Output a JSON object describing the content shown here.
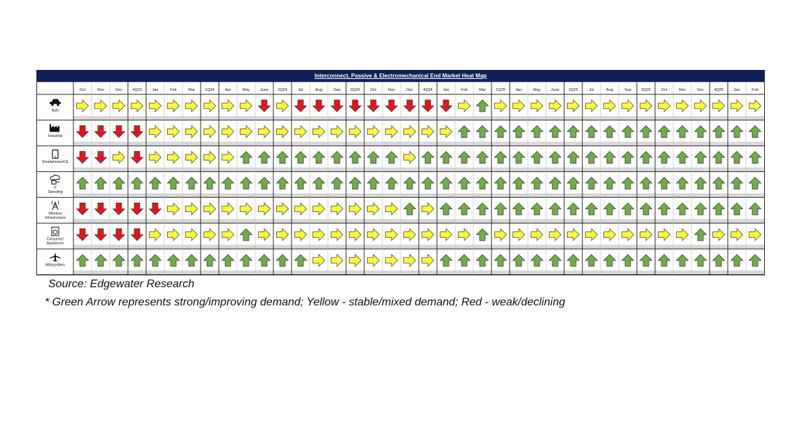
{
  "chart_data": {
    "type": "heatmap",
    "title": "Interconnect, Passive & Electromechanical End Market Heat Map",
    "columns": [
      "Oct",
      "Nov",
      "Dec",
      "4Q23",
      "Jan",
      "Feb",
      "Mar",
      "1Q24",
      "Apr",
      "May",
      "June",
      "2Q24",
      "Jul",
      "Aug",
      "Sep",
      "3Q24",
      "Oct",
      "Nov",
      "Dec",
      "4Q24",
      "Jan",
      "Feb",
      "Mar",
      "1Q25",
      "Apr",
      "May",
      "June",
      "2Q25",
      "Jul",
      "Aug",
      "Sep",
      "3Q25",
      "Oct",
      "Nov",
      "Dec",
      "4Q25",
      "Jan",
      "Feb"
    ],
    "quarter_columns": [
      3,
      7,
      11,
      15,
      19,
      23,
      27,
      31,
      35
    ],
    "rows": [
      {
        "label": "Auto",
        "icon": "car-icon",
        "values": [
          "Y",
          "Y",
          "Y",
          "Y",
          "Y",
          "Y",
          "Y",
          "Y",
          "Y",
          "Y",
          "R",
          "Y",
          "R",
          "R",
          "R",
          "R",
          "R",
          "R",
          "R",
          "R",
          "R",
          "Y",
          "G",
          "Y",
          "Y",
          "Y",
          "Y",
          "Y",
          "Y",
          "Y",
          "Y",
          "Y",
          "Y",
          "Y",
          "Y",
          "Y",
          "Y",
          "Y"
        ]
      },
      {
        "label": "Industrial",
        "icon": "factory-icon",
        "values": [
          "R",
          "R",
          "R",
          "R",
          "Y",
          "Y",
          "Y",
          "Y",
          "Y",
          "Y",
          "Y",
          "Y",
          "Y",
          "Y",
          "Y",
          "Y",
          "Y",
          "Y",
          "Y",
          "Y",
          "Y",
          "G",
          "G",
          "G",
          "G",
          "G",
          "G",
          "G",
          "G",
          "G",
          "G",
          "G",
          "G",
          "G",
          "G",
          "G",
          "G",
          "G"
        ]
      },
      {
        "label": "Smartphones/CE",
        "icon": "smartphone-icon",
        "values": [
          "R",
          "R",
          "Y",
          "R",
          "Y",
          "Y",
          "Y",
          "Y",
          "Y",
          "G",
          "G",
          "G",
          "G",
          "G",
          "G",
          "G",
          "G",
          "G",
          "Y",
          "G",
          "G",
          "G",
          "G",
          "G",
          "G",
          "G",
          "G",
          "G",
          "G",
          "G",
          "G",
          "G",
          "G",
          "G",
          "G",
          "G",
          "G",
          "G"
        ]
      },
      {
        "label": "IT Spending",
        "icon": "cloud-server-icon",
        "values": [
          "G",
          "G",
          "G",
          "G",
          "G",
          "G",
          "G",
          "G",
          "G",
          "G",
          "G",
          "G",
          "G",
          "G",
          "G",
          "G",
          "G",
          "G",
          "G",
          "G",
          "G",
          "G",
          "G",
          "G",
          "G",
          "G",
          "G",
          "G",
          "G",
          "G",
          "G",
          "G",
          "G",
          "G",
          "G",
          "G",
          "G",
          "G"
        ]
      },
      {
        "label": "Wireless Infrastructure",
        "icon": "antenna-tower-icon",
        "values": [
          "R",
          "R",
          "R",
          "R",
          "R",
          "Y",
          "Y",
          "Y",
          "Y",
          "Y",
          "Y",
          "Y",
          "Y",
          "Y",
          "Y",
          "Y",
          "Y",
          "Y",
          "G",
          "Y",
          "G",
          "G",
          "G",
          "G",
          "G",
          "G",
          "G",
          "G",
          "G",
          "G",
          "G",
          "G",
          "G",
          "G",
          "G",
          "G",
          "G",
          "G"
        ]
      },
      {
        "label": "Consumer/ Appliances",
        "icon": "washing-machine-icon",
        "values": [
          "R",
          "R",
          "R",
          "R",
          "Y",
          "Y",
          "Y",
          "Y",
          "Y",
          "G",
          "Y",
          "Y",
          "Y",
          "Y",
          "Y",
          "Y",
          "Y",
          "Y",
          "Y",
          "Y",
          "Y",
          "Y",
          "G",
          "Y",
          "Y",
          "Y",
          "Y",
          "Y",
          "Y",
          "Y",
          "Y",
          "Y",
          "Y",
          "Y",
          "G",
          "Y",
          "Y",
          "Y"
        ]
      },
      {
        "label": "Military/Aero",
        "icon": "airplane-icon",
        "values": [
          "G",
          "G",
          "G",
          "G",
          "G",
          "G",
          "G",
          "G",
          "G",
          "G",
          "G",
          "G",
          "G",
          "Y",
          "Y",
          "Y",
          "Y",
          "Y",
          "Y",
          "Y",
          "G",
          "G",
          "G",
          "G",
          "G",
          "G",
          "G",
          "G",
          "G",
          "G",
          "G",
          "G",
          "G",
          "G",
          "G",
          "G",
          "G",
          "G"
        ]
      }
    ],
    "legend": {
      "G": "strong/improving demand",
      "Y": "stable/mixed demand",
      "R": "weak/declining"
    },
    "colors": {
      "G": "#70ad47",
      "Y": "#ffff33",
      "R": "#e8141b",
      "header": "#0e1f5c",
      "stripe": "#d9d9d9"
    }
  },
  "notes": {
    "source": "Source: Edgewater Research",
    "legend_text": "* Green Arrow represents strong/improving demand; Yellow - stable/mixed demand; Red - weak/declining"
  }
}
